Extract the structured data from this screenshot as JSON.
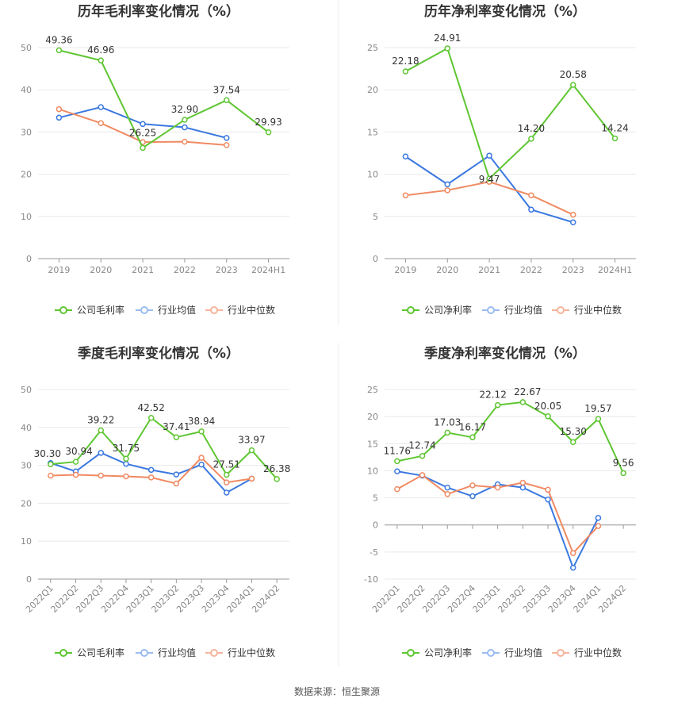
{
  "colors": {
    "company": "#5fc632",
    "industry_avg": "#3a78e0",
    "industry_median": "#f08a62",
    "grid": "#e8e8e8",
    "axis": "#999999"
  },
  "legend": {
    "gross_company": "公司毛利率",
    "net_company": "公司净利率",
    "industry_avg": "行业均值",
    "industry_median": "行业中位数"
  },
  "source": "数据来源：恒生聚源",
  "chart_data": [
    {
      "type": "line",
      "title": "历年毛利率变化情况（%）",
      "categories": [
        "2019",
        "2020",
        "2021",
        "2022",
        "2023",
        "2024H1"
      ],
      "ylim": [
        0,
        50
      ],
      "yticks": [
        0,
        10,
        20,
        30,
        40,
        50
      ],
      "legend_position": "bottom",
      "series": [
        {
          "name": "公司毛利率",
          "values": [
            49.36,
            46.96,
            26.25,
            32.9,
            37.54,
            29.93
          ],
          "labels": [
            "49.36",
            "46.96",
            "26.25",
            "32.90",
            "37.54",
            "29.93"
          ]
        },
        {
          "name": "行业均值",
          "values": [
            33.4,
            35.9,
            31.9,
            31.1,
            28.6,
            null
          ]
        },
        {
          "name": "行业中位数",
          "values": [
            35.4,
            32.1,
            27.6,
            27.7,
            26.9,
            null
          ]
        }
      ]
    },
    {
      "type": "line",
      "title": "历年净利率变化情况（%）",
      "categories": [
        "2019",
        "2020",
        "2021",
        "2022",
        "2023",
        "2024H1"
      ],
      "ylim": [
        0,
        25
      ],
      "yticks": [
        0,
        5,
        10,
        15,
        20,
        25
      ],
      "legend_position": "bottom",
      "series": [
        {
          "name": "公司净利率",
          "values": [
            22.18,
            24.91,
            9.47,
            14.2,
            20.58,
            14.24
          ],
          "labels": [
            "22.18",
            "24.91",
            "9.47",
            "14.20",
            "20.58",
            "14.24"
          ]
        },
        {
          "name": "行业均值",
          "values": [
            12.1,
            8.8,
            12.2,
            5.8,
            4.3,
            null
          ]
        },
        {
          "name": "行业中位数",
          "values": [
            7.5,
            8.1,
            9.1,
            7.5,
            5.2,
            null
          ]
        }
      ]
    },
    {
      "type": "line",
      "title": "季度毛利率变化情况（%）",
      "categories": [
        "2022Q1",
        "2022Q2",
        "2022Q3",
        "2022Q4",
        "2023Q1",
        "2023Q2",
        "2023Q3",
        "2023Q4",
        "2024Q1",
        "2024Q2"
      ],
      "ylim": [
        0,
        50
      ],
      "yticks": [
        0,
        10,
        20,
        30,
        40,
        50
      ],
      "legend_position": "bottom",
      "series": [
        {
          "name": "公司毛利率",
          "values": [
            30.3,
            30.94,
            39.22,
            31.75,
            42.52,
            37.41,
            38.94,
            27.51,
            33.97,
            26.38
          ],
          "labels": [
            "30.30",
            "30.94",
            "39.22",
            "31.75",
            "42.52",
            "37.41",
            "38.94",
            "27.51",
            "33.97",
            "26.38"
          ]
        },
        {
          "name": "行业均值",
          "values": [
            30.6,
            28.4,
            33.3,
            30.4,
            28.8,
            27.6,
            30.2,
            22.8,
            26.5,
            null
          ]
        },
        {
          "name": "行业中位数",
          "values": [
            27.3,
            27.5,
            27.3,
            27.1,
            26.8,
            25.2,
            32.0,
            25.5,
            26.5,
            null
          ]
        }
      ]
    },
    {
      "type": "line",
      "title": "季度净利率变化情况（%）",
      "categories": [
        "2022Q1",
        "2022Q2",
        "2022Q3",
        "2022Q4",
        "2023Q1",
        "2023Q2",
        "2023Q3",
        "2023Q4",
        "2024Q1",
        "2024Q2"
      ],
      "ylim": [
        -10,
        25
      ],
      "yticks": [
        -10,
        -5,
        0,
        5,
        10,
        15,
        20,
        25
      ],
      "legend_position": "bottom",
      "series": [
        {
          "name": "公司净利率",
          "values": [
            11.76,
            12.74,
            17.03,
            16.17,
            22.12,
            22.67,
            20.05,
            15.3,
            19.57,
            9.56
          ],
          "labels": [
            "11.76",
            "12.74",
            "17.03",
            "16.17",
            "22.12",
            "22.67",
            "20.05",
            "15.30",
            "19.57",
            "9.56"
          ]
        },
        {
          "name": "行业均值",
          "values": [
            9.9,
            9.1,
            6.9,
            5.3,
            7.5,
            6.9,
            4.7,
            -7.9,
            1.3,
            null
          ]
        },
        {
          "name": "行业中位数",
          "values": [
            6.6,
            9.2,
            5.7,
            7.3,
            6.9,
            7.8,
            6.5,
            -5.2,
            -0.2,
            null
          ]
        }
      ]
    }
  ]
}
